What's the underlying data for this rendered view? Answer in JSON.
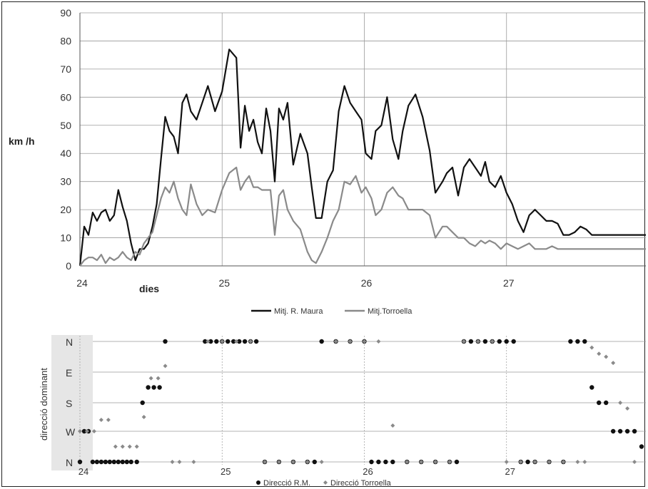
{
  "colors": {
    "series1": "#111111",
    "series2": "#8a8a8a",
    "grid": "#9a9a9a",
    "band": "#e6e6e6"
  },
  "chart_data": [
    {
      "type": "line",
      "ylabel": "km /h",
      "xlabel": "dies",
      "ylim": [
        0,
        90
      ],
      "xlim": [
        24,
        27.98
      ],
      "yticks": [
        0,
        10,
        20,
        30,
        40,
        50,
        60,
        70,
        80,
        90
      ],
      "xticks": [
        24,
        25,
        26,
        27
      ],
      "grid": true,
      "legend": "bottom",
      "series": [
        {
          "name": "Mitj. R. Maura",
          "x": [
            24.0,
            24.03,
            24.06,
            24.09,
            24.12,
            24.15,
            24.18,
            24.21,
            24.24,
            24.27,
            24.3,
            24.33,
            24.36,
            24.39,
            24.42,
            24.45,
            24.48,
            24.51,
            24.54,
            24.57,
            24.6,
            24.63,
            24.66,
            24.69,
            24.72,
            24.75,
            24.78,
            24.82,
            24.86,
            24.9,
            24.95,
            25.0,
            25.05,
            25.1,
            25.13,
            25.16,
            25.19,
            25.22,
            25.25,
            25.28,
            25.31,
            25.34,
            25.37,
            25.4,
            25.43,
            25.46,
            25.5,
            25.55,
            25.6,
            25.63,
            25.66,
            25.7,
            25.74,
            25.78,
            25.82,
            25.86,
            25.9,
            25.94,
            25.98,
            26.01,
            26.05,
            26.08,
            26.12,
            26.16,
            26.2,
            26.24,
            26.27,
            26.31,
            26.36,
            26.41,
            26.46,
            26.5,
            26.55,
            26.58,
            26.62,
            26.66,
            26.7,
            26.74,
            26.78,
            26.82,
            26.85,
            26.88,
            26.92,
            26.96,
            27.0,
            27.04,
            27.08,
            27.12,
            27.16,
            27.2,
            27.24,
            27.28,
            27.32,
            27.36,
            27.4,
            27.44,
            27.48,
            27.52,
            27.56,
            27.6,
            27.63,
            27.66,
            27.7,
            27.74,
            27.78,
            27.82,
            27.86,
            27.9,
            27.94,
            27.98
          ],
          "y": [
            0,
            14,
            11,
            19,
            16,
            19,
            20,
            16,
            18,
            27,
            21,
            16,
            8,
            2,
            6,
            6,
            8,
            14,
            22,
            38,
            53,
            48,
            46,
            40,
            58,
            61,
            55,
            52,
            58,
            64,
            55,
            62,
            77,
            74,
            42,
            57,
            48,
            52,
            44,
            40,
            56,
            48,
            30,
            56,
            52,
            58,
            36,
            47,
            40,
            28,
            17,
            17,
            30,
            34,
            55,
            64,
            58,
            55,
            52,
            40,
            38,
            48,
            50,
            60,
            45,
            38,
            48,
            57,
            61,
            53,
            41,
            26,
            30,
            33,
            35,
            25,
            35,
            38,
            35,
            32,
            37,
            30,
            28,
            32,
            26,
            22,
            16,
            12,
            18,
            20,
            18,
            16,
            16,
            15,
            11,
            11,
            12,
            14,
            13,
            11,
            11,
            11,
            11,
            11,
            11,
            11,
            11,
            11,
            11,
            11
          ]
        },
        {
          "name": "Mitj.Torroella",
          "x": [
            24.0,
            24.03,
            24.06,
            24.09,
            24.12,
            24.15,
            24.18,
            24.21,
            24.24,
            24.27,
            24.3,
            24.33,
            24.36,
            24.39,
            24.42,
            24.45,
            24.48,
            24.51,
            24.54,
            24.57,
            24.6,
            24.63,
            24.66,
            24.69,
            24.72,
            24.75,
            24.78,
            24.82,
            24.86,
            24.9,
            24.95,
            25.0,
            25.05,
            25.1,
            25.13,
            25.16,
            25.19,
            25.22,
            25.25,
            25.28,
            25.31,
            25.34,
            25.37,
            25.4,
            25.43,
            25.46,
            25.5,
            25.55,
            25.6,
            25.63,
            25.66,
            25.7,
            25.74,
            25.78,
            25.82,
            25.86,
            25.9,
            25.94,
            25.98,
            26.01,
            26.05,
            26.08,
            26.12,
            26.16,
            26.2,
            26.24,
            26.27,
            26.31,
            26.36,
            26.41,
            26.46,
            26.5,
            26.55,
            26.58,
            26.62,
            26.66,
            26.7,
            26.74,
            26.78,
            26.82,
            26.85,
            26.88,
            26.92,
            26.96,
            27.0,
            27.04,
            27.08,
            27.12,
            27.16,
            27.2,
            27.24,
            27.28,
            27.32,
            27.36,
            27.4,
            27.44,
            27.48,
            27.52,
            27.56,
            27.6,
            27.63,
            27.66,
            27.7,
            27.74,
            27.78,
            27.82,
            27.86,
            27.9,
            27.94,
            27.98
          ],
          "y": [
            0,
            2,
            3,
            3,
            2,
            4,
            1,
            3,
            2,
            3,
            5,
            3,
            2,
            5,
            4,
            8,
            10,
            12,
            18,
            24,
            28,
            26,
            30,
            24,
            20,
            18,
            29,
            22,
            18,
            20,
            19,
            27,
            33,
            35,
            27,
            30,
            32,
            28,
            28,
            27,
            27,
            27,
            11,
            25,
            27,
            20,
            16,
            13,
            5,
            2,
            1,
            5,
            10,
            16,
            20,
            30,
            29,
            32,
            26,
            28,
            24,
            18,
            20,
            26,
            28,
            25,
            24,
            20,
            20,
            20,
            18,
            10,
            14,
            14,
            12,
            10,
            10,
            8,
            7,
            9,
            8,
            9,
            8,
            6,
            8,
            7,
            6,
            7,
            8,
            6,
            6,
            6,
            7,
            6,
            6,
            6,
            6,
            6,
            6,
            6,
            6,
            6,
            6,
            6,
            6,
            6,
            6,
            6,
            6,
            6
          ]
        }
      ]
    },
    {
      "type": "scatter",
      "ylabel": "direcció dominant",
      "yticks": [
        "N",
        "E",
        "S",
        "W",
        "N"
      ],
      "xticks": [
        24,
        25,
        26,
        27
      ],
      "xlim": [
        24,
        27.98
      ],
      "grid": true,
      "legend": "bottom",
      "series": [
        {
          "name": "Direcció R.M.",
          "x": [
            24.0,
            24.03,
            24.06,
            24.09,
            24.12,
            24.15,
            24.18,
            24.21,
            24.24,
            24.27,
            24.3,
            24.33,
            24.36,
            24.4,
            24.44,
            24.48,
            24.52,
            24.56,
            24.6,
            24.88,
            24.92,
            24.96,
            25.0,
            25.04,
            25.08,
            25.12,
            25.16,
            25.2,
            25.24,
            25.3,
            25.4,
            25.5,
            25.6,
            25.65,
            25.7,
            25.8,
            25.9,
            26.0,
            26.05,
            26.1,
            26.15,
            26.2,
            26.3,
            26.4,
            26.5,
            26.6,
            26.65,
            26.7,
            26.75,
            26.8,
            26.85,
            26.9,
            26.95,
            27.0,
            27.05,
            27.1,
            27.15,
            27.2,
            27.3,
            27.4,
            27.45,
            27.5,
            27.55,
            27.6,
            27.65,
            27.7,
            27.75,
            27.8,
            27.85,
            27.9,
            27.95
          ],
          "y": [
            4,
            3,
            3,
            4,
            4,
            4,
            4,
            4,
            4,
            4,
            4,
            4,
            4,
            4,
            2,
            1.5,
            1.5,
            1.5,
            0,
            0,
            0,
            0,
            0,
            0,
            0,
            0,
            0,
            0,
            0,
            4,
            4,
            4,
            4,
            4,
            0,
            0,
            0,
            0,
            4,
            4,
            4,
            4,
            4,
            4,
            4,
            4,
            4,
            0,
            0,
            0,
            0,
            0,
            0,
            0,
            0,
            4,
            4,
            4,
            4,
            4,
            0,
            0,
            0,
            1.5,
            2,
            2,
            3,
            3,
            3,
            3,
            3.5
          ]
        },
        {
          "name": "Direcció Torroella",
          "x": [
            24.0,
            24.05,
            24.1,
            24.15,
            24.2,
            24.25,
            24.3,
            24.35,
            24.4,
            24.45,
            24.5,
            24.55,
            24.6,
            24.65,
            24.7,
            24.8,
            24.9,
            25.0,
            25.1,
            25.2,
            25.3,
            25.4,
            25.5,
            25.6,
            25.7,
            25.8,
            25.9,
            26.0,
            26.1,
            26.2,
            26.3,
            26.4,
            26.5,
            26.6,
            26.7,
            26.8,
            26.9,
            27.0,
            27.1,
            27.2,
            27.3,
            27.4,
            27.5,
            27.55,
            27.6,
            27.65,
            27.7,
            27.75,
            27.8,
            27.85,
            27.9
          ],
          "y": [
            3,
            3,
            3,
            2.6,
            2.6,
            3.5,
            3.5,
            3.5,
            3.5,
            2.5,
            1.2,
            1.2,
            0.8,
            4,
            4,
            4,
            0,
            0,
            0,
            0,
            4,
            4,
            4,
            4,
            4,
            0,
            0,
            0,
            0,
            2.8,
            4,
            4,
            4,
            4,
            0,
            0,
            0,
            4,
            4,
            4,
            4,
            4,
            4,
            4,
            0.2,
            0.4,
            0.5,
            0.7,
            2,
            2.2,
            4
          ]
        }
      ]
    }
  ]
}
